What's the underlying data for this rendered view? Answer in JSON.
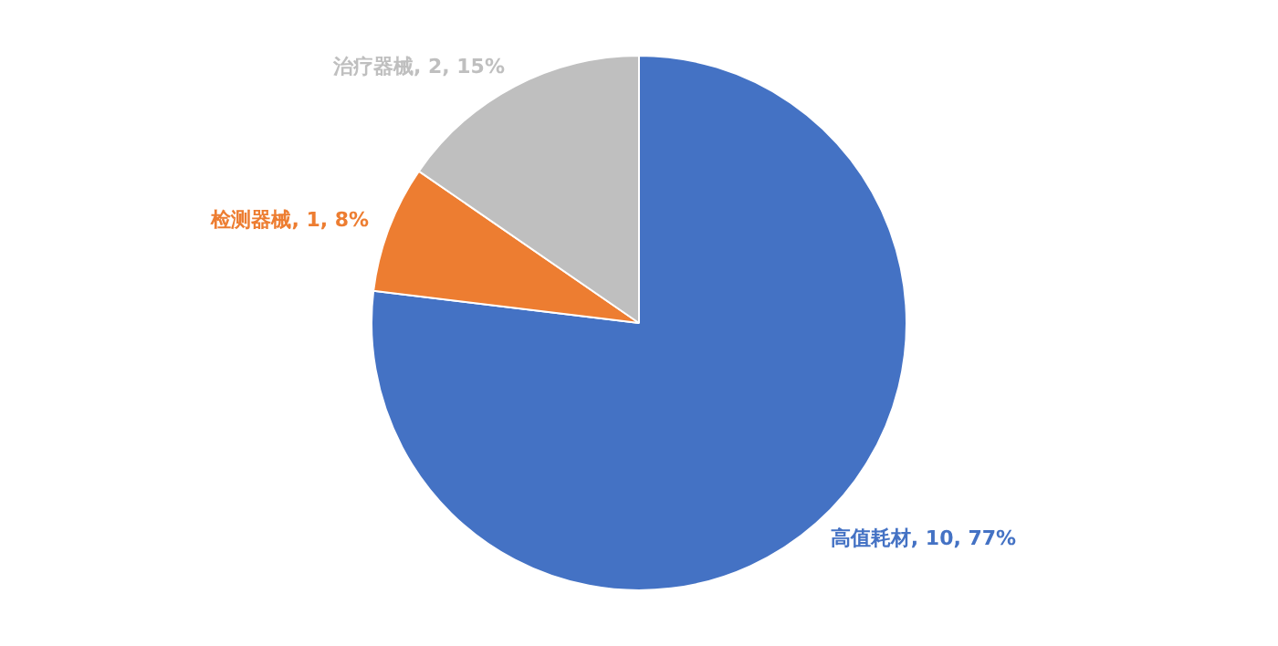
{
  "chart_data": {
    "type": "pie",
    "categories": [
      "高值耗材",
      "检测器械",
      "治疗器械"
    ],
    "values": [
      10,
      1,
      2
    ],
    "colors": [
      "#4472c4",
      "#ed7d31",
      "#bfbfbf"
    ],
    "value_labels": [
      "10, 77%",
      "1, 8%",
      "2, 15%"
    ],
    "legend": false
  }
}
